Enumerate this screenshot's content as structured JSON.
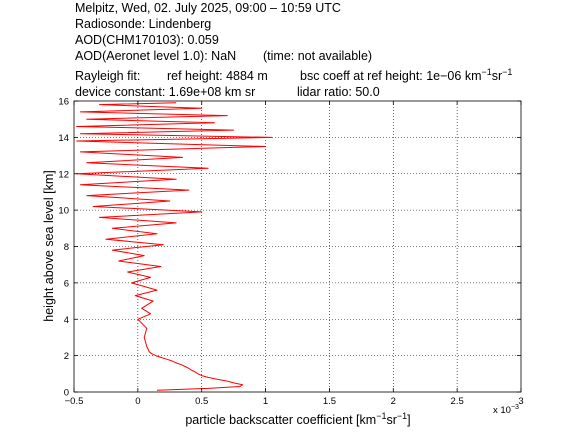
{
  "header": {
    "line1": "Melpitz, Wed, 02. July 2025, 09:00 – 10:59 UTC",
    "line2": "Radiosonde: Lindenberg",
    "line3": "AOD(CHM170103): 0.059",
    "line4a": "AOD(Aeronet level 1.0): NaN",
    "line4b": "(time: not available)",
    "line5a": "Rayleigh fit:",
    "line5b": "ref height: 4884 m",
    "line5c": "bsc coeff at ref height: 1e−06 km",
    "line5c_sup1": "−1",
    "line5c_mid": "sr",
    "line5c_sup2": "−1",
    "line6a": "device constant: 1.69e+08 km sr",
    "line6b": "lidar ratio: 50.0"
  },
  "colors": {
    "profile": "#ff0000",
    "axes": "#000000",
    "grid": "#000000",
    "background": "#ffffff"
  },
  "chart_data": {
    "type": "line",
    "title": "",
    "xlabel": "particle backscatter coefficient [km",
    "xlabel_sup1": "−1",
    "xlabel_mid": "sr",
    "xlabel_sup2": "−1",
    "xlabel_end": "]",
    "ylabel": "height above sea level [km]",
    "x_multiplier": "x 10",
    "x_multiplier_exp": "−3",
    "xlim": [
      -0.5,
      3
    ],
    "ylim": [
      0,
      16
    ],
    "x_ticks": [
      "−0.5",
      "0",
      "0.5",
      "1",
      "1.5",
      "2",
      "2.5",
      "3"
    ],
    "x_tick_values": [
      -0.5,
      0,
      0.5,
      1,
      1.5,
      2,
      2.5,
      3
    ],
    "y_ticks": [
      "0",
      "2",
      "4",
      "6",
      "8",
      "10",
      "12",
      "14",
      "16"
    ],
    "y_tick_values": [
      0,
      2,
      4,
      6,
      8,
      10,
      12,
      14,
      16
    ],
    "grid": true,
    "series": [
      {
        "color": "#ff0000",
        "points": [
          [
            0.15,
            0.1
          ],
          [
            0.55,
            0.2
          ],
          [
            0.8,
            0.3
          ],
          [
            0.82,
            0.4
          ],
          [
            0.75,
            0.5
          ],
          [
            0.7,
            0.6
          ],
          [
            0.62,
            0.7
          ],
          [
            0.55,
            0.8
          ],
          [
            0.5,
            0.9
          ],
          [
            0.47,
            1.0
          ],
          [
            0.45,
            1.1
          ],
          [
            0.42,
            1.2
          ],
          [
            0.4,
            1.3
          ],
          [
            0.37,
            1.4
          ],
          [
            0.34,
            1.5
          ],
          [
            0.3,
            1.6
          ],
          [
            0.27,
            1.7
          ],
          [
            0.23,
            1.8
          ],
          [
            0.18,
            1.9
          ],
          [
            0.14,
            2.0
          ],
          [
            0.11,
            2.1
          ],
          [
            0.09,
            2.2
          ],
          [
            0.07,
            2.5
          ],
          [
            0.05,
            3.0
          ],
          [
            0.07,
            3.5
          ],
          [
            0.0,
            4.0
          ],
          [
            0.1,
            4.3
          ],
          [
            0.03,
            4.6
          ],
          [
            0.12,
            5.0
          ],
          [
            -0.02,
            5.3
          ],
          [
            0.15,
            5.6
          ],
          [
            -0.05,
            6.0
          ],
          [
            0.1,
            6.3
          ],
          [
            -0.08,
            6.6
          ],
          [
            0.18,
            6.9
          ],
          [
            -0.15,
            7.2
          ],
          [
            0.05,
            7.5
          ],
          [
            -0.2,
            7.8
          ],
          [
            0.2,
            8.1
          ],
          [
            -0.25,
            8.4
          ],
          [
            0.15,
            8.7
          ],
          [
            -0.2,
            9.0
          ],
          [
            0.3,
            9.3
          ],
          [
            -0.3,
            9.6
          ],
          [
            0.5,
            9.9
          ],
          [
            -0.35,
            10.2
          ],
          [
            0.25,
            10.5
          ],
          [
            -0.4,
            10.8
          ],
          [
            0.4,
            11.1
          ],
          [
            -0.45,
            11.4
          ],
          [
            0.3,
            11.7
          ],
          [
            -0.48,
            12.0
          ],
          [
            0.55,
            12.3
          ],
          [
            -0.4,
            12.6
          ],
          [
            0.35,
            12.9
          ],
          [
            -0.45,
            13.2
          ],
          [
            1.0,
            13.5
          ],
          [
            -0.48,
            13.8
          ],
          [
            1.05,
            14.0
          ],
          [
            -0.45,
            14.2
          ],
          [
            0.75,
            14.4
          ],
          [
            -0.48,
            14.6
          ],
          [
            0.6,
            14.8
          ],
          [
            -0.4,
            15.0
          ],
          [
            0.7,
            15.2
          ],
          [
            -0.45,
            15.4
          ],
          [
            0.5,
            15.6
          ],
          [
            -0.3,
            15.8
          ],
          [
            0.3,
            15.9
          ]
        ]
      }
    ]
  }
}
